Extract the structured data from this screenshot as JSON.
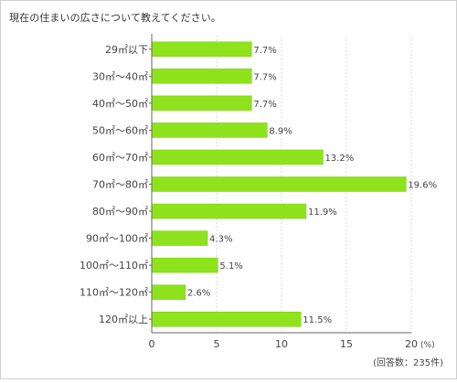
{
  "page": {
    "title": "現在の住まいの広さについて教えてください。"
  },
  "colors": {
    "bar": "#8ee31c",
    "bar_stroke": "#7ccd10",
    "grid": "#d9d9d9",
    "axis": "#666666",
    "text": "#444444",
    "frame": "#cfcfcf"
  },
  "chart_data": {
    "type": "bar",
    "orientation": "horizontal",
    "categories": [
      "29㎡以下",
      "30㎡～40㎡",
      "40㎡～50㎡",
      "50㎡～60㎡",
      "60㎡～70㎡",
      "70㎡～80㎡",
      "80㎡～90㎡",
      "90㎡～100㎡",
      "100㎡～110㎡",
      "110㎡～120㎡",
      "120㎡以上"
    ],
    "values": [
      7.7,
      7.7,
      7.7,
      8.9,
      13.2,
      19.6,
      11.9,
      4.3,
      5.1,
      2.6,
      11.5
    ],
    "value_labels": [
      "7.7%",
      "7.7%",
      "7.7%",
      "8.9%",
      "13.2%",
      "19.6%",
      "11.9%",
      "4.3%",
      "5.1%",
      "2.6%",
      "11.5%"
    ],
    "xlim": [
      0,
      20
    ],
    "x_ticks": [
      "0",
      "5",
      "10",
      "15",
      "20"
    ],
    "x_unit": "(%)",
    "footnote": "(回答数：235件)",
    "grid": true,
    "legend": "none"
  }
}
